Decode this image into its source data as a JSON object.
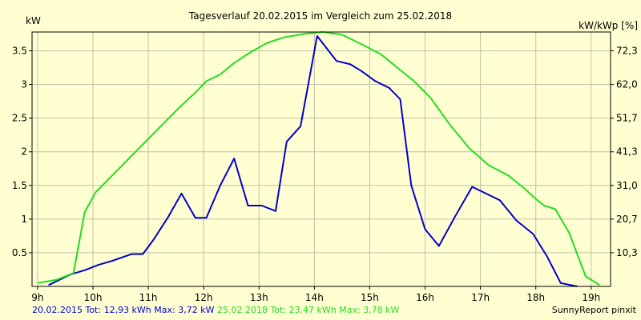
{
  "chart_data": {
    "type": "line",
    "title": "Tagesverlauf 20.02.2015 im Vergleich zum 25.02.2018",
    "ylabel_left": "kW",
    "ylabel_right": "kW/kWp [%]",
    "ylim": [
      0,
      3.78
    ],
    "yticks_left": [
      "0.5",
      "1",
      "1.5",
      "2",
      "2.5",
      "3",
      "3.5"
    ],
    "yticks_left_values": [
      0.5,
      1,
      1.5,
      2,
      2.5,
      3,
      3.5
    ],
    "yticks_right": [
      "10,3",
      "20,7",
      "31,0",
      "41,3",
      "51,7",
      "62,0",
      "72,3"
    ],
    "xticks": [
      "9h",
      "10h",
      "11h",
      "12h",
      "13h",
      "14h",
      "15h",
      "16h",
      "17h",
      "18h",
      "19h"
    ],
    "xticks_values": [
      9,
      10,
      11,
      12,
      13,
      14,
      15,
      16,
      17,
      18,
      19
    ],
    "xlim": [
      8.9,
      19.35
    ],
    "grid": true,
    "colors": {
      "background": "#FFFFD2",
      "axis": "#000000",
      "grid": "#C0C0A8"
    },
    "series": [
      {
        "color": "#0000CC",
        "x": [
          9.2,
          9.6,
          9.85,
          10.1,
          10.35,
          10.7,
          10.9,
          11.1,
          11.35,
          11.6,
          11.85,
          12.05,
          12.3,
          12.55,
          12.8,
          13.05,
          13.3,
          13.5,
          13.75,
          14.05,
          14.4,
          14.65,
          14.85,
          15.1,
          15.35,
          15.55,
          15.75,
          16.0,
          16.25,
          16.55,
          16.85,
          17.1,
          17.35,
          17.65,
          17.95,
          18.2,
          18.45,
          18.75
        ],
        "y": [
          0.02,
          0.18,
          0.24,
          0.32,
          0.38,
          0.48,
          0.48,
          0.7,
          1.02,
          1.38,
          1.02,
          1.02,
          1.5,
          1.9,
          1.2,
          1.2,
          1.12,
          2.15,
          2.38,
          3.72,
          3.35,
          3.3,
          3.2,
          3.05,
          2.95,
          2.78,
          1.5,
          0.85,
          0.6,
          1.05,
          1.48,
          1.38,
          1.28,
          0.98,
          0.78,
          0.45,
          0.05,
          0.0
        ]
      },
      {
        "color": "#22DD22",
        "x": [
          9.0,
          9.35,
          9.65,
          9.85,
          10.05,
          10.35,
          10.65,
          10.95,
          11.25,
          11.55,
          11.85,
          12.05,
          12.3,
          12.55,
          12.85,
          13.15,
          13.45,
          13.8,
          14.15,
          14.5,
          14.85,
          15.2,
          15.5,
          15.8,
          16.1,
          16.45,
          16.8,
          17.15,
          17.5,
          17.8,
          18.0,
          18.15,
          18.35,
          18.6,
          18.9,
          19.15
        ],
        "y": [
          0.05,
          0.1,
          0.2,
          1.1,
          1.4,
          1.65,
          1.9,
          2.15,
          2.4,
          2.65,
          2.88,
          3.05,
          3.15,
          3.32,
          3.48,
          3.62,
          3.7,
          3.75,
          3.78,
          3.74,
          3.6,
          3.45,
          3.25,
          3.05,
          2.8,
          2.4,
          2.05,
          1.8,
          1.65,
          1.45,
          1.3,
          1.2,
          1.15,
          0.8,
          0.15,
          0.02
        ]
      }
    ]
  },
  "footer": {
    "series1_summary": "20.02.2015 Tot: 12,93 kWh Max: 3,72 kW",
    "series2_summary": "25.02.2018 Tot: 23,47 kWh Max: 3,78 kW",
    "credit": "SunnyReport pinxit"
  }
}
